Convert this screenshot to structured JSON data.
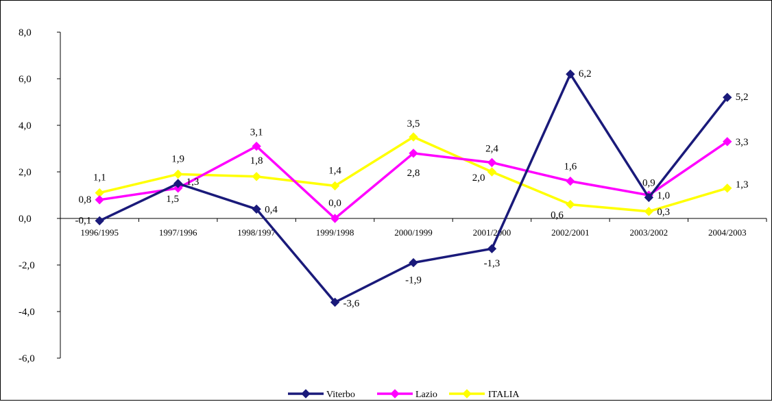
{
  "chart_data": {
    "type": "line",
    "title": "",
    "xlabel": "",
    "ylabel": "",
    "ylim": [
      -6,
      8
    ],
    "y_ticks": [
      "8,0",
      "6,0",
      "4,0",
      "2,0",
      "0,0",
      "-2,0",
      "-4,0",
      "-6,0"
    ],
    "categories": [
      "1996/1995",
      "1997/1996",
      "1998/1997",
      "1999/1998",
      "2000/1999",
      "2001/2000",
      "2002/2001",
      "2003/2002",
      "2004/2003"
    ],
    "series": [
      {
        "name": "Viterbo",
        "color": "#1a1a7a",
        "marker": "diamond",
        "values": [
          -0.1,
          1.5,
          0.4,
          -3.6,
          -1.9,
          -1.3,
          6.2,
          0.9,
          5.2
        ],
        "labels": [
          "-0,1",
          "1,5",
          "0,4",
          "-3,6",
          "-1,9",
          "-1,3",
          "6,2",
          "0,9",
          "5,2"
        ]
      },
      {
        "name": "Lazio",
        "color": "#ff00ff",
        "marker": "diamond",
        "values": [
          0.8,
          1.3,
          3.1,
          0.0,
          2.8,
          2.4,
          1.6,
          1.0,
          3.3
        ],
        "labels": [
          "0,8",
          "1,3",
          "3,1",
          "0,0",
          "2,8",
          "2,4",
          "1,6",
          "1,0",
          "3,3"
        ]
      },
      {
        "name": "ITALIA",
        "color": "#ffff00",
        "marker": "diamond",
        "values": [
          1.1,
          1.9,
          1.8,
          1.4,
          3.5,
          2.0,
          0.6,
          0.3,
          1.3
        ],
        "labels": [
          "1,1",
          "1,9",
          "1,8",
          "1,4",
          "3,5",
          "2,0",
          "0,6",
          "0,3",
          "1,3"
        ]
      }
    ],
    "grid": false,
    "legend": "bottom-center"
  }
}
